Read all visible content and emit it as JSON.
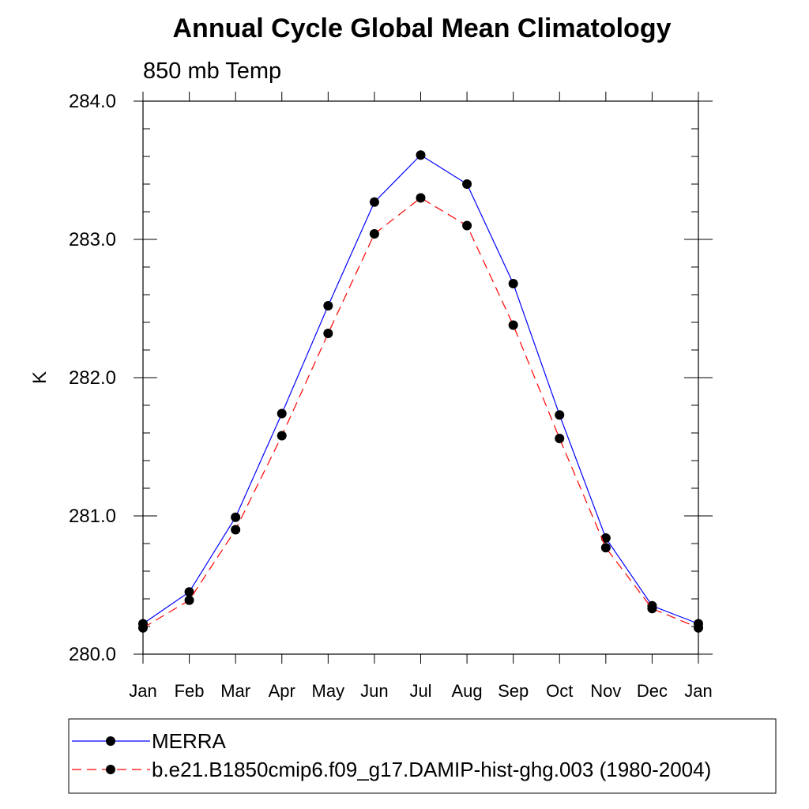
{
  "chart_data": {
    "type": "line",
    "title": "Annual Cycle Global Mean Climatology",
    "subtitle": "850 mb Temp",
    "ylabel": "K",
    "ylim": [
      280.0,
      284.0
    ],
    "yticks": [
      "280.0",
      "281.0",
      "282.0",
      "283.0",
      "284.0"
    ],
    "categories": [
      "Jan",
      "Feb",
      "Mar",
      "Apr",
      "May",
      "Jun",
      "Jul",
      "Aug",
      "Sep",
      "Oct",
      "Nov",
      "Dec",
      "Jan"
    ],
    "grid": false,
    "legend_position": "bottom",
    "series": [
      {
        "name": "MERRA",
        "color": "#0000ff",
        "dash": "solid",
        "marker": "filled-circle",
        "values": [
          280.22,
          280.45,
          280.99,
          281.74,
          282.52,
          283.27,
          283.61,
          283.4,
          282.68,
          281.73,
          280.84,
          280.35,
          280.22
        ]
      },
      {
        "name": "b.e21.B1850cmip6.f09_g17.DAMIP-hist-ghg.003 (1980-2004)",
        "color": "#ff0000",
        "dash": "dashed",
        "marker": "filled-circle",
        "values": [
          280.19,
          280.39,
          280.9,
          281.58,
          282.32,
          283.04,
          283.3,
          283.1,
          282.38,
          281.56,
          280.77,
          280.33,
          280.19
        ]
      }
    ]
  }
}
